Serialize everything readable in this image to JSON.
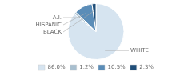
{
  "chart_data": {
    "type": "pie",
    "categories": [
      "WHITE",
      "A.I.",
      "HISPANIC",
      "BLACK"
    ],
    "values": [
      86.0,
      1.2,
      10.5,
      2.3
    ],
    "value_labels": [
      "86.0%",
      "1.2%",
      "10.5%",
      "2.3%"
    ],
    "colors": [
      "#d6e4f0",
      "#a8bfcf",
      "#5b8db8",
      "#1f4e79"
    ],
    "legend": "bottom"
  }
}
